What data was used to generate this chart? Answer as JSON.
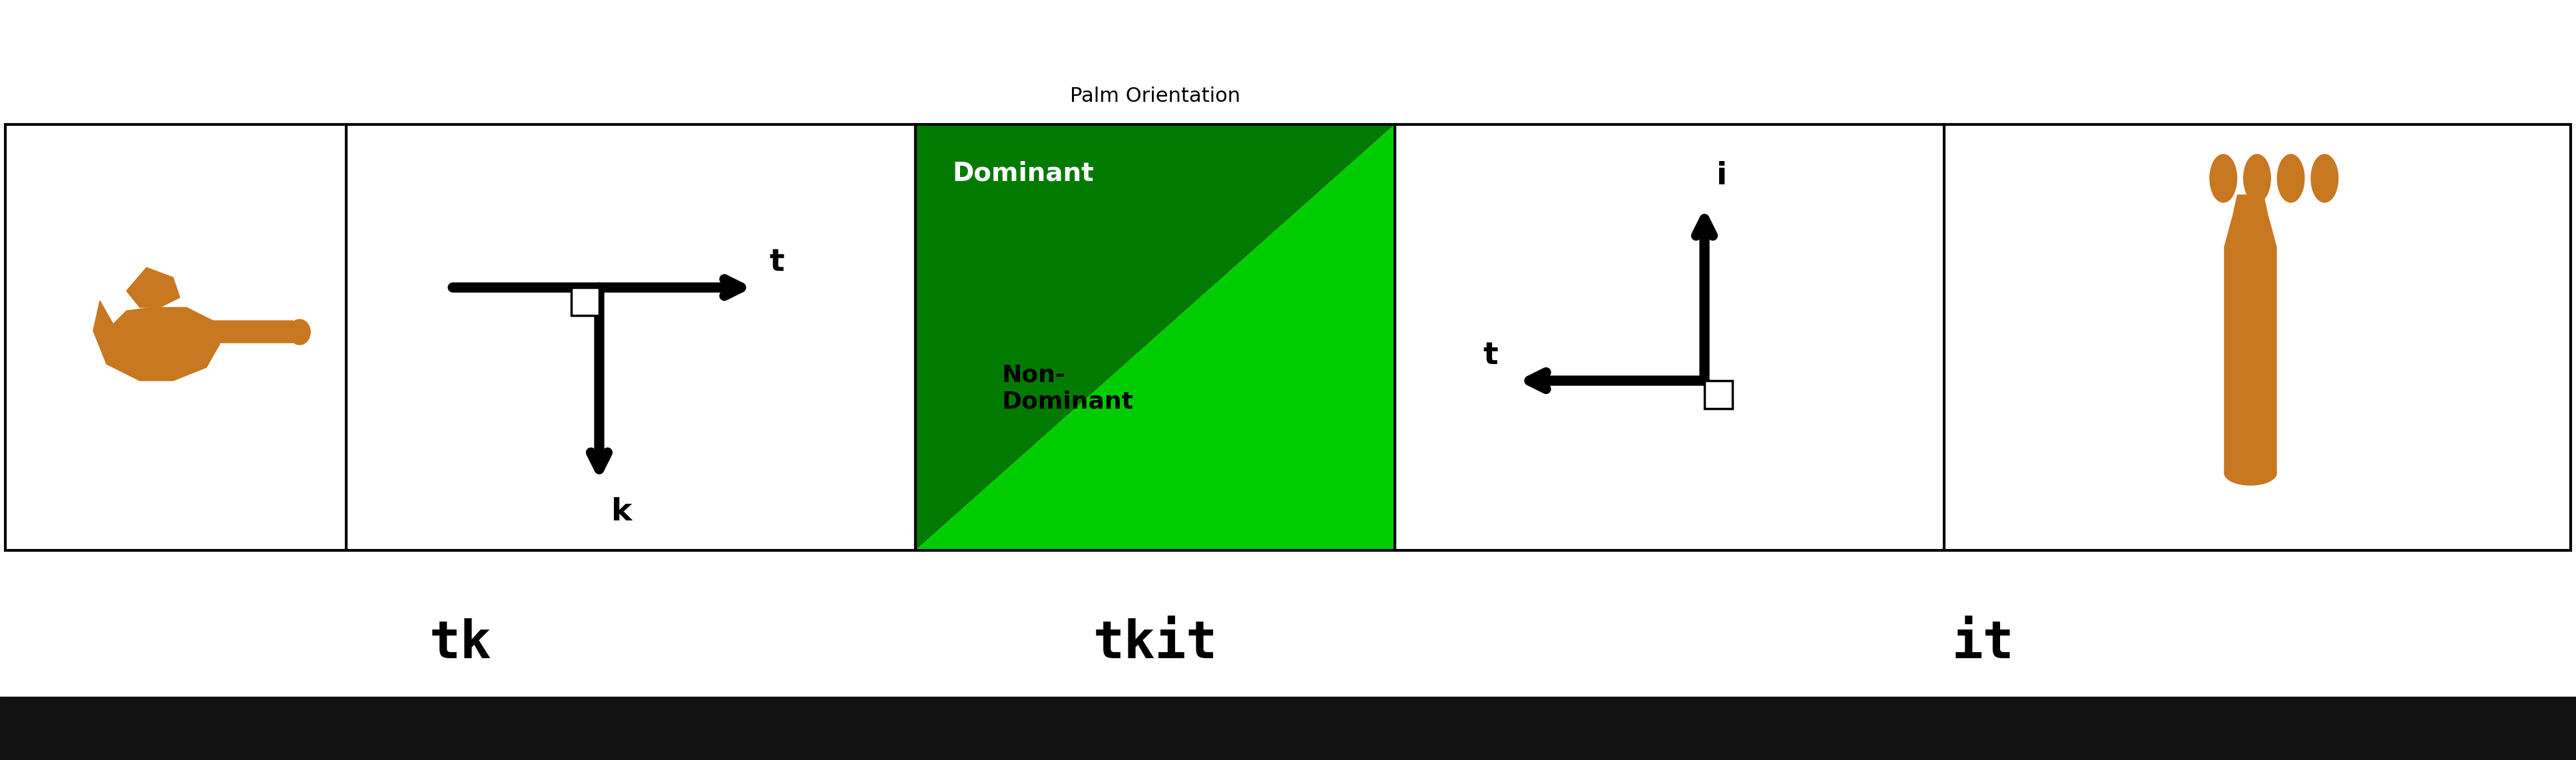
{
  "title": "Palm Orientation",
  "title_fontsize": 22,
  "label_tk": "tk",
  "label_tkit": "tkit",
  "label_it": "it",
  "label_fontsize": 56,
  "dominant_text": "Dominant",
  "nondominant_text": "Non-\nDominant",
  "palm_label": "Palm Orientation",
  "dark_green": "#007A00",
  "light_green": "#00CC00",
  "white": "#FFFFFF",
  "black": "#000000",
  "bg_color": "#FFFFFF",
  "bottom_bar_color": "#111111",
  "hand_color": "#C87820",
  "fig_width": 38.69,
  "fig_height": 11.42
}
